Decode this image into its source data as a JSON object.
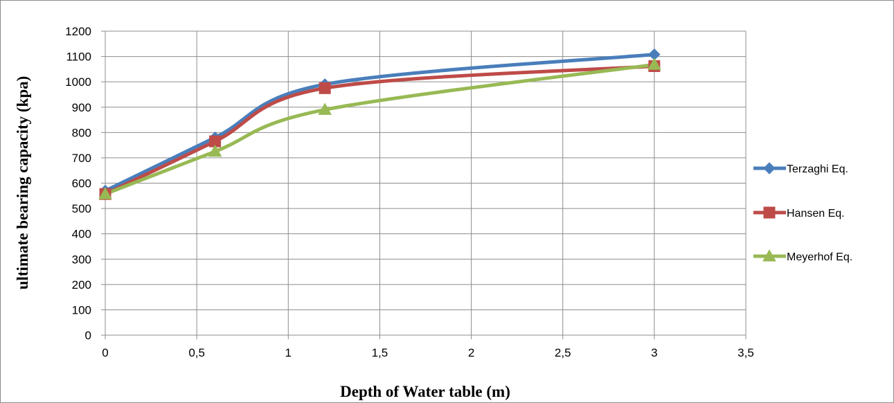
{
  "chart_data": {
    "type": "line",
    "title": "",
    "xlabel": "Depth of Water table (m)",
    "ylabel": "ultimate bearing capacity (kpa)",
    "xlim": [
      0,
      3.5
    ],
    "ylim": [
      0,
      1200
    ],
    "x_ticks": [
      "0",
      "0,5",
      "1",
      "1,5",
      "2",
      "2,5",
      "3",
      "3,5"
    ],
    "y_ticks": [
      "0",
      "100",
      "200",
      "300",
      "400",
      "500",
      "600",
      "700",
      "800",
      "900",
      "1000",
      "1100",
      "1200"
    ],
    "x": [
      0,
      0.6,
      1.2,
      3
    ],
    "series": [
      {
        "name": "Terzaghi Eq.",
        "values": [
          570,
          780,
          990,
          1108
        ],
        "color": "#4a7ebb",
        "marker": "diamond"
      },
      {
        "name": "Hansen Eq.",
        "values": [
          557,
          765,
          975,
          1062
        ],
        "color": "#be4b48",
        "marker": "square"
      },
      {
        "name": "Meyerhof Eq.",
        "values": [
          557,
          725,
          890,
          1068
        ],
        "color": "#98b954",
        "marker": "triangle"
      }
    ],
    "grid": true,
    "smooth": true,
    "legend": "right"
  }
}
